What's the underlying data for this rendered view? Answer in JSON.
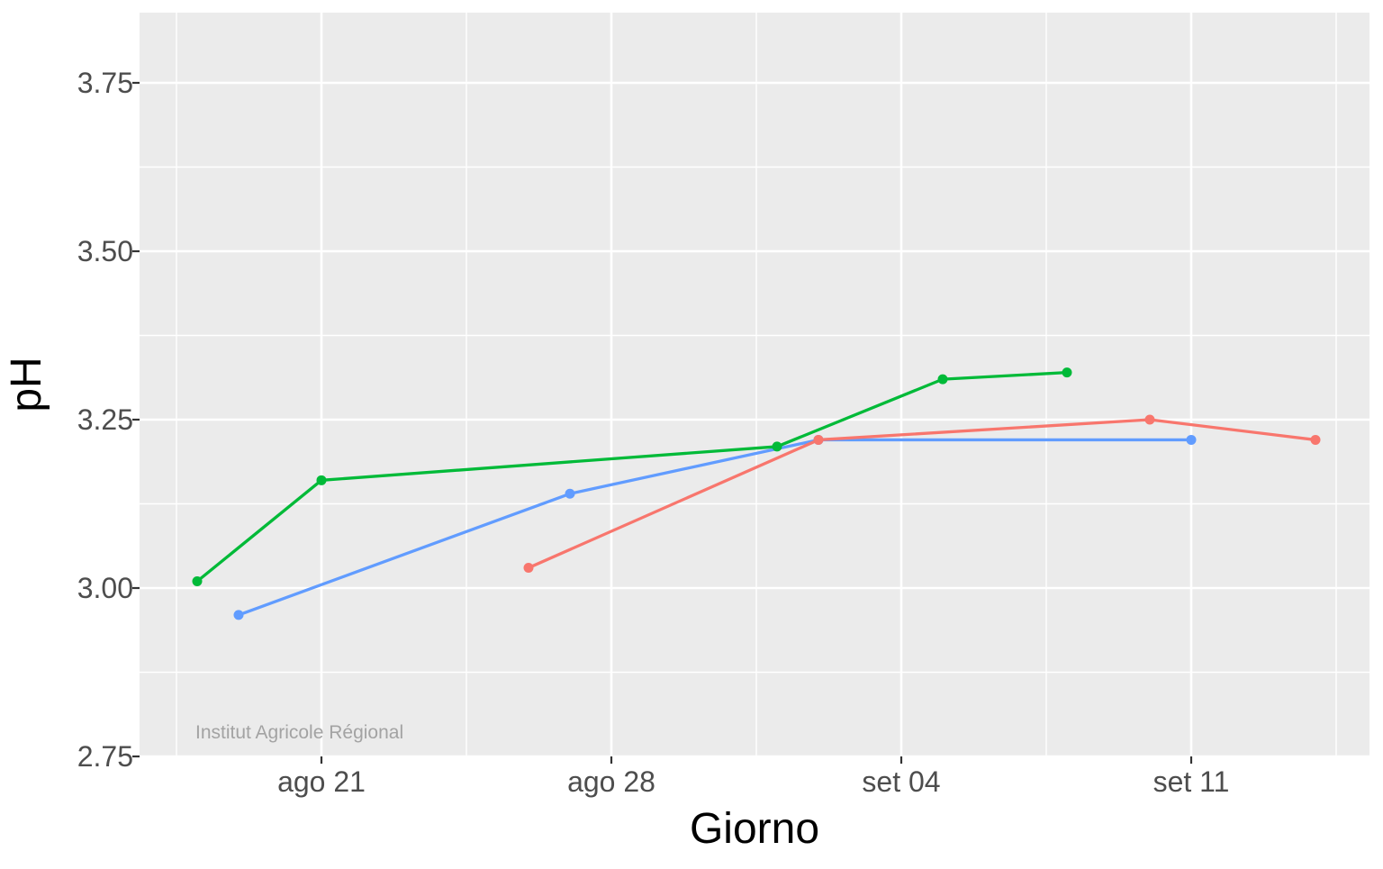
{
  "figure": {
    "watermark": "Institut Agricole Régional"
  },
  "chart_data": {
    "type": "line",
    "title": "",
    "xlabel": "Giorno",
    "ylabel": "pH",
    "legend": "none",
    "grid": true,
    "x_axis": {
      "ticks": [
        {
          "label": "ago 21",
          "day": 0
        },
        {
          "label": "ago 28",
          "day": 7
        },
        {
          "label": "set 04",
          "day": 14
        },
        {
          "label": "set 11",
          "day": 21
        }
      ],
      "minor_days": [
        -3.5,
        3.5,
        10.5,
        17.5,
        24.5
      ],
      "domain_days": [
        -4.39,
        25.3
      ]
    },
    "y_axis": {
      "ticks": [
        {
          "label": "3.75",
          "value": 3.75
        },
        {
          "label": "3.50",
          "value": 3.5
        },
        {
          "label": "3.25",
          "value": 3.25
        },
        {
          "label": "3.00",
          "value": 3.0
        },
        {
          "label": "2.75",
          "value": 2.75
        }
      ],
      "minor_values": [
        2.875,
        3.125,
        3.375,
        3.625
      ],
      "domain": [
        2.75,
        3.854
      ]
    },
    "series": [
      {
        "name": "blue",
        "color": "#619CFF",
        "points": [
          {
            "x": "ago 19",
            "day": -2,
            "ph": 2.96
          },
          {
            "x": "ago 27",
            "day": 6,
            "ph": 3.14
          },
          {
            "x": "set 02",
            "day": 12,
            "ph": 3.22
          },
          {
            "x": "set 11",
            "day": 21,
            "ph": 3.22
          }
        ]
      },
      {
        "name": "green",
        "color": "#00BA38",
        "points": [
          {
            "x": "ago 18",
            "day": -3,
            "ph": 3.01
          },
          {
            "x": "ago 21",
            "day": 0,
            "ph": 3.16
          },
          {
            "x": "set 01",
            "day": 11,
            "ph": 3.21
          },
          {
            "x": "set 05",
            "day": 15,
            "ph": 3.31
          },
          {
            "x": "set 08",
            "day": 18,
            "ph": 3.32
          }
        ]
      },
      {
        "name": "red",
        "color": "#F8766D",
        "points": [
          {
            "x": "ago 26",
            "day": 5,
            "ph": 3.03
          },
          {
            "x": "set 02",
            "day": 12,
            "ph": 3.22
          },
          {
            "x": "set 10",
            "day": 20,
            "ph": 3.25
          },
          {
            "x": "set 14",
            "day": 24,
            "ph": 3.22
          }
        ]
      }
    ],
    "style": {
      "background": "#FFFFFF",
      "panel_bg": "#EBEBEB",
      "grid_color": "#FFFFFF",
      "axis_text_color": "#4D4D4D",
      "axis_title_color": "#000000",
      "tick_color": "#333333",
      "watermark_color": "#A3A3A3"
    }
  }
}
